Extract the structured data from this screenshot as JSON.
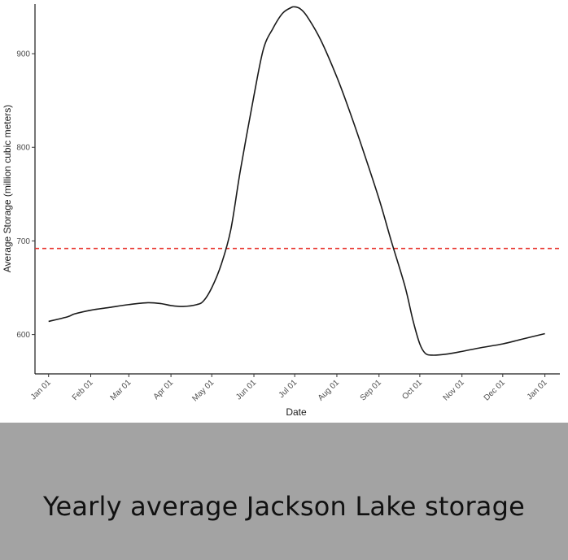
{
  "chart_data": {
    "type": "line",
    "xlabel": "Date",
    "ylabel": "Average Storage (million cubic meters)",
    "x_tick_labels": [
      "Jan 01",
      "Feb 01",
      "Mar 01",
      "Apr 01",
      "May 01",
      "Jun 01",
      "Jul 01",
      "Aug 01",
      "Sep 01",
      "Oct 01",
      "Nov 01",
      "Dec 01",
      "Jan 01"
    ],
    "x_tick_dates": [
      "2001-01-01",
      "2001-02-01",
      "2001-03-01",
      "2001-04-01",
      "2001-05-01",
      "2001-06-01",
      "2001-07-01",
      "2001-08-01",
      "2001-09-01",
      "2001-10-01",
      "2001-11-01",
      "2001-12-01",
      "2002-01-01"
    ],
    "y_ticks": [
      600,
      700,
      800,
      900
    ],
    "ylim": [
      558,
      953
    ],
    "xlim": [
      "2000-12-22",
      "2002-01-12"
    ],
    "grid": false,
    "series": [
      {
        "color": "#1a1a1a",
        "x": [
          "2001-01-01",
          "2001-01-15",
          "2001-01-20",
          "2001-02-01",
          "2001-02-15",
          "2001-03-01",
          "2001-03-15",
          "2001-03-25",
          "2001-04-01",
          "2001-04-10",
          "2001-04-20",
          "2001-04-25",
          "2001-05-01",
          "2001-05-08",
          "2001-05-15",
          "2001-05-22",
          "2001-06-01",
          "2001-06-08",
          "2001-06-15",
          "2001-06-22",
          "2001-06-28",
          "2001-07-01",
          "2001-07-05",
          "2001-07-10",
          "2001-07-20",
          "2001-08-01",
          "2001-08-10",
          "2001-08-20",
          "2001-09-01",
          "2001-09-10",
          "2001-09-20",
          "2001-09-26",
          "2001-10-01",
          "2001-10-05",
          "2001-10-10",
          "2001-10-20",
          "2001-11-01",
          "2001-11-15",
          "2001-12-01",
          "2001-12-15",
          "2002-01-01"
        ],
        "y": [
          614,
          619,
          622,
          626,
          629,
          632,
          634,
          633,
          631,
          630,
          632,
          636,
          650,
          675,
          712,
          775,
          855,
          905,
          927,
          943,
          949,
          950,
          948,
          940,
          915,
          875,
          840,
          798,
          745,
          700,
          652,
          615,
          590,
          580,
          578,
          579,
          582,
          586,
          590,
          595,
          601
        ]
      }
    ],
    "reference_lines": [
      {
        "axis": "y",
        "value": 692,
        "color": "#e8312a",
        "style": "dashed"
      }
    ]
  },
  "caption": {
    "text": "Yearly average Jackson Lake storage"
  }
}
